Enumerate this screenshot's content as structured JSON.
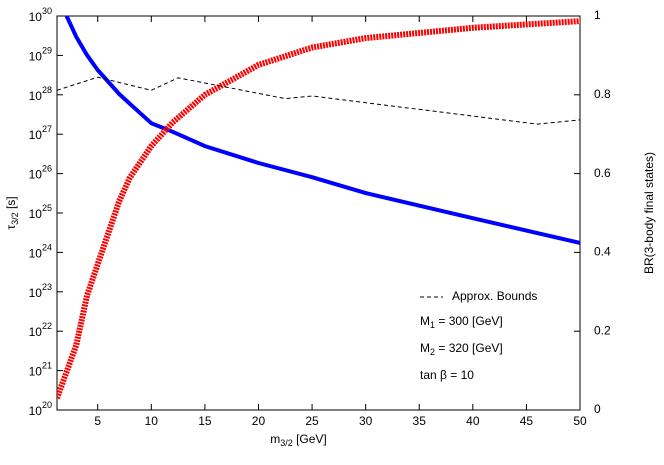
{
  "chart_data": {
    "type": "line",
    "x_label": {
      "text": "m",
      "sub": "3/2",
      "rest": " [GeV]"
    },
    "y_label": {
      "text": "τ",
      "sub": "3/2",
      "rest": " [s]"
    },
    "y2_label": "BR(3-body final states)",
    "xlim": [
      1.2,
      50
    ],
    "xticks": [
      5,
      10,
      15,
      20,
      25,
      30,
      35,
      40,
      45,
      50
    ],
    "ylim": [
      1e+20,
      1e+30
    ],
    "log_y": true,
    "yticks": [
      {
        "value": 1e+20,
        "label": "10",
        "exponent": "20"
      },
      {
        "value": 1e+21,
        "label": "10",
        "exponent": "21"
      },
      {
        "value": 1e+22,
        "label": "10",
        "exponent": "22"
      },
      {
        "value": 1e+23,
        "label": "10",
        "exponent": "23"
      },
      {
        "value": 1e+24,
        "label": "10",
        "exponent": "24"
      },
      {
        "value": 1e+25,
        "label": "10",
        "exponent": "25"
      },
      {
        "value": 1e+26,
        "label": "10",
        "exponent": "26"
      },
      {
        "value": 1e+27,
        "label": "10",
        "exponent": "27"
      },
      {
        "value": 1e+28,
        "label": "10",
        "exponent": "28"
      },
      {
        "value": 1e+29,
        "label": "10",
        "exponent": "29"
      },
      {
        "value": 1e+30,
        "label": "10",
        "exponent": "30"
      }
    ],
    "y2lim": [
      0,
      1
    ],
    "y2ticks": [
      0,
      0.2,
      0.4,
      0.6,
      0.8,
      1
    ],
    "grid": false,
    "legend": "lower-right",
    "series": [
      {
        "color": "#0000ff",
        "style": "band",
        "axis": "y",
        "x": [
          2.1,
          3,
          4,
          5,
          7,
          8,
          10,
          12,
          15,
          20,
          25,
          30,
          40,
          50
        ],
        "values": [
          1e+30,
          2.95e+29,
          1.02e+29,
          4.27e+28,
          1.05e+28,
          5.9e+27,
          1.9e+27,
          1.15e+27,
          5e+26,
          1.86e+26,
          8.1e+25,
          3.2e+25,
          7.4e+24,
          1.74e+24
        ]
      },
      {
        "color": "#ff0000",
        "style": "band",
        "axis": "y2",
        "x": [
          1.2,
          2,
          3,
          4,
          5,
          7,
          8,
          10,
          12,
          15,
          20,
          25,
          30,
          40,
          50
        ],
        "values": [
          0.03,
          0.09,
          0.165,
          0.29,
          0.37,
          0.53,
          0.59,
          0.67,
          0.73,
          0.8,
          0.876,
          0.92,
          0.944,
          0.97,
          0.987
        ]
      },
      {
        "name": "Approx. Bounds",
        "color": "#000000",
        "style": "dashed",
        "axis": "y",
        "x": [
          1.2,
          5,
          10,
          12.5,
          22.5,
          25,
          46,
          50
        ],
        "values": [
          1.3e+28,
          2.8e+28,
          1.3e+28,
          2.7e+28,
          8e+27,
          9.3e+27,
          1.8e+27,
          2.3e+27
        ]
      }
    ],
    "annotations": [
      {
        "text": "M",
        "sub": "1",
        "rest": " = 300 [GeV]"
      },
      {
        "text": "M",
        "sub": "2",
        "rest": " = 320 [GeV]"
      },
      {
        "text": "tan β = 10"
      }
    ]
  }
}
